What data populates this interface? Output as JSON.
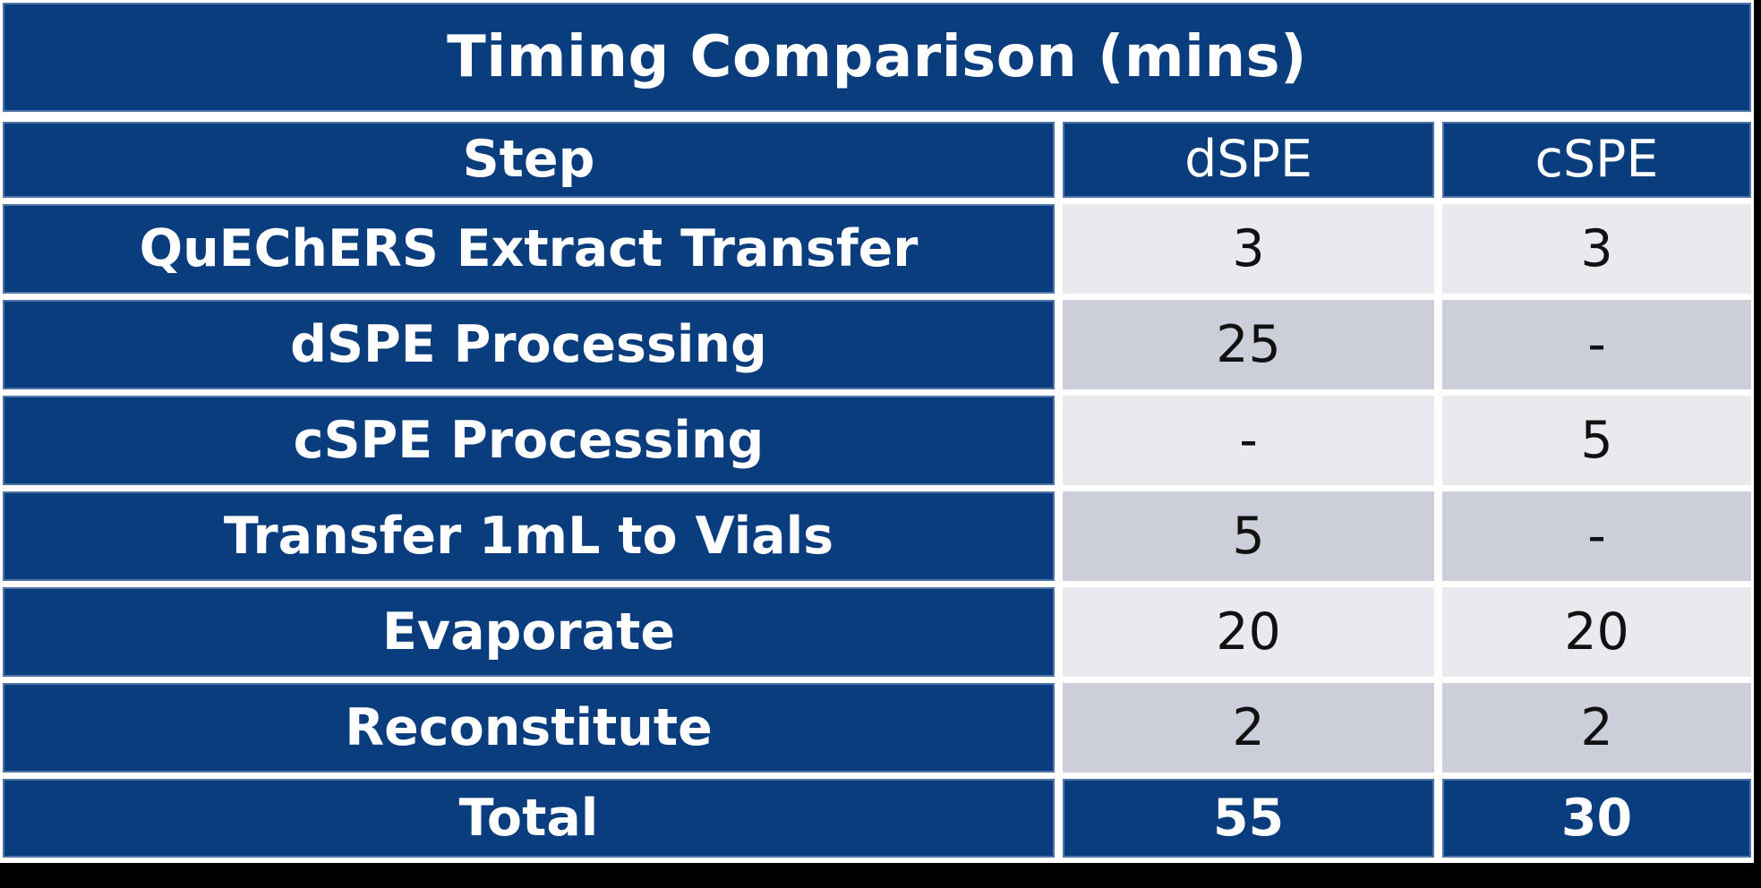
{
  "table": {
    "title": "Timing Comparison (mins)",
    "columns": [
      {
        "label": "Step"
      },
      {
        "label": "dSPE"
      },
      {
        "label": "cSPE"
      }
    ],
    "rows": [
      {
        "step": "QuEChERS Extract Transfer",
        "dspe": "3",
        "cspe": "3"
      },
      {
        "step": "dSPE Processing",
        "dspe": "25",
        "cspe": "-"
      },
      {
        "step": "cSPE Processing",
        "dspe": "-",
        "cspe": "5"
      },
      {
        "step": "Transfer 1mL to Vials",
        "dspe": "5",
        "cspe": "-"
      },
      {
        "step": "Evaporate",
        "dspe": "20",
        "cspe": "20"
      },
      {
        "step": "Reconstitute",
        "dspe": "2",
        "cspe": "2"
      }
    ],
    "total": {
      "label": "Total",
      "dspe": "55",
      "cspe": "30"
    }
  },
  "colors": {
    "navy": "#0a3d7d",
    "cell_border": "#4f74a8",
    "row_light": "#e9eaee",
    "row_dark": "#cccfda",
    "text_on_navy": "#ffffff",
    "text_on_gray": "#111111",
    "background": "#000000"
  },
  "chart_data": {
    "type": "table",
    "title": "Timing Comparison (mins)",
    "columns": [
      "Step",
      "dSPE",
      "cSPE"
    ],
    "rows": [
      {
        "step": "QuEChERS Extract Transfer",
        "dSPE": 3,
        "cSPE": 3
      },
      {
        "step": "dSPE Processing",
        "dSPE": 25,
        "cSPE": null
      },
      {
        "step": "cSPE Processing",
        "dSPE": null,
        "cSPE": 5
      },
      {
        "step": "Transfer 1mL to Vials",
        "dSPE": 5,
        "cSPE": null
      },
      {
        "step": "Evaporate",
        "dSPE": 20,
        "cSPE": 20
      },
      {
        "step": "Reconstitute",
        "dSPE": 2,
        "cSPE": 2
      }
    ],
    "totals": {
      "step": "Total",
      "dSPE": 55,
      "cSPE": 30
    },
    "units": "minutes"
  }
}
